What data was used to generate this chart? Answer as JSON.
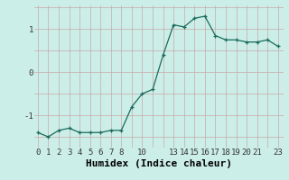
{
  "x": [
    0,
    1,
    2,
    3,
    4,
    5,
    6,
    7,
    8,
    9,
    10,
    11,
    12,
    13,
    14,
    15,
    16,
    17,
    18,
    19,
    20,
    21,
    22,
    23
  ],
  "y": [
    -1.4,
    -1.5,
    -1.35,
    -1.3,
    -1.4,
    -1.4,
    -1.4,
    -1.35,
    -1.35,
    -0.8,
    -0.5,
    -0.4,
    0.4,
    1.1,
    1.05,
    1.25,
    1.3,
    0.85,
    0.75,
    0.75,
    0.7,
    0.7,
    0.75,
    0.6
  ],
  "xticks": [
    0,
    1,
    2,
    3,
    4,
    5,
    6,
    7,
    8,
    10,
    13,
    14,
    15,
    16,
    17,
    18,
    19,
    20,
    21,
    23
  ],
  "yticks": [
    -1,
    0,
    1
  ],
  "xlabel": "Humidex (Indice chaleur)",
  "bg_color": "#cceee8",
  "line_color": "#1a6b5c",
  "marker_color": "#1a6b5c",
  "grid_color_v": "#c8a8a8",
  "grid_color_h": "#c8a8a8",
  "xlabel_fontsize": 8,
  "tick_fontsize": 6.5,
  "ylim": [
    -1.75,
    1.55
  ],
  "xlim": [
    -0.3,
    23.5
  ]
}
